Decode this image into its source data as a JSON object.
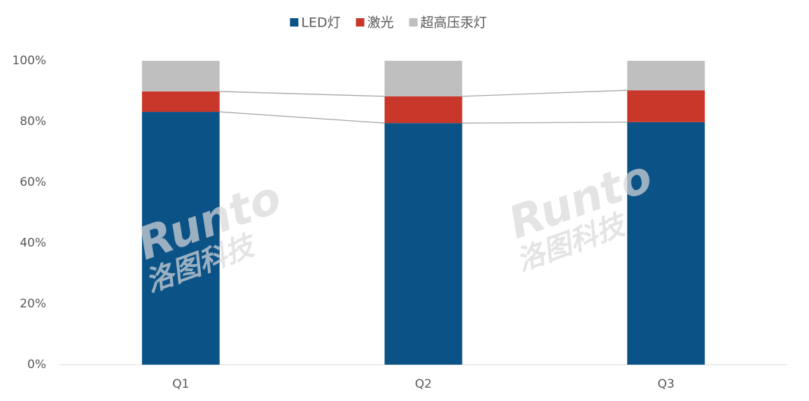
{
  "chart_data": {
    "type": "stacked_bar",
    "categories": [
      "Q1",
      "Q2",
      "Q3"
    ],
    "series": [
      {
        "name": "LED灯",
        "color": "#0b5287",
        "values": [
          83.2,
          79.5,
          79.8
        ]
      },
      {
        "name": "激光",
        "color": "#c9372a",
        "values": [
          6.7,
          8.8,
          10.5
        ]
      },
      {
        "name": "超高压汞灯",
        "color": "#bfbfbf",
        "values": [
          10.1,
          11.7,
          9.7
        ]
      }
    ],
    "ylim": [
      0,
      100
    ],
    "yticks": [
      {
        "value": 0,
        "label": "0%"
      },
      {
        "value": 20,
        "label": "20%"
      },
      {
        "value": 40,
        "label": "40%"
      },
      {
        "value": 60,
        "label": "60%"
      },
      {
        "value": 80,
        "label": "80%"
      },
      {
        "value": 100,
        "label": "100%"
      }
    ],
    "legend": "top",
    "series_lines": true,
    "watermark": {
      "brand": "Runto",
      "name": "洛图科技"
    }
  }
}
